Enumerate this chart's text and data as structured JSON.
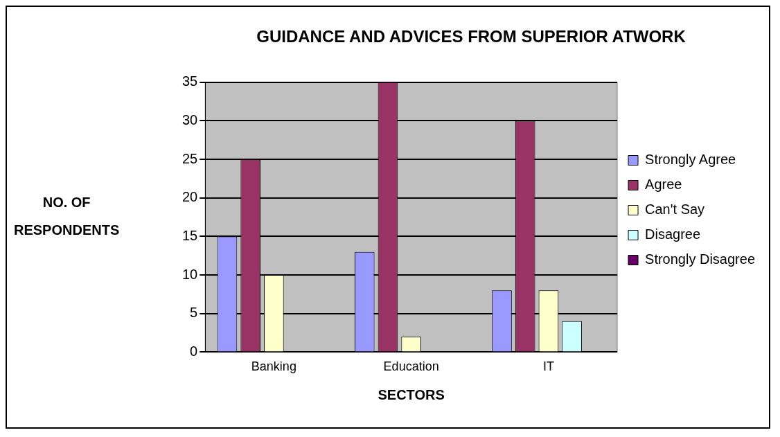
{
  "chart_data": {
    "type": "bar",
    "title": "GUIDANCE AND ADVICES FROM SUPERIOR ATWORK",
    "xlabel": "SECTORS",
    "ylabel": "NO. OF RESPONDENTS",
    "categories": [
      "Banking",
      "Education",
      "IT"
    ],
    "series": [
      {
        "name": "Strongly Agree",
        "color": "#9999ff",
        "values": [
          15,
          13,
          8
        ]
      },
      {
        "name": "Agree",
        "color": "#993366",
        "values": [
          25,
          35,
          30
        ]
      },
      {
        "name": "Can't Say",
        "color": "#ffffcc",
        "values": [
          10,
          2,
          8
        ]
      },
      {
        "name": "Disagree",
        "color": "#ccffff",
        "values": [
          0,
          0,
          4
        ]
      },
      {
        "name": "Strongly Disagree",
        "color": "#660066",
        "values": [
          0,
          0,
          0
        ]
      }
    ],
    "ylim": [
      0,
      35
    ],
    "yticks": [
      0,
      5,
      10,
      15,
      20,
      25,
      30,
      35
    ],
    "grid": "y",
    "legend": "right"
  }
}
